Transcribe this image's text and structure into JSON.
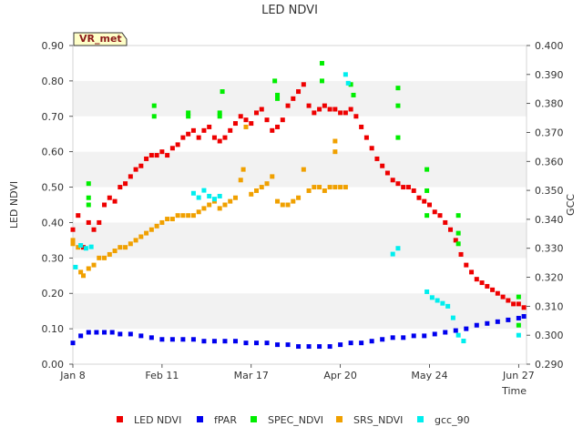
{
  "chart_data": {
    "type": "scatter",
    "title": "LED NDVI",
    "xlabel": "Time",
    "ylabel_left": "LED NDVI",
    "ylabel_right": "GCC",
    "badge": "VR_met",
    "x_ticks": [
      "Jan 8",
      "Feb 11",
      "Mar 17",
      "Apr 20",
      "May 24",
      "Jun 27"
    ],
    "x_range_days": [
      0,
      173
    ],
    "x_tick_days": [
      0,
      34,
      68,
      102,
      136,
      170
    ],
    "y_left_ticks": [
      "0.00",
      "0.10",
      "0.20",
      "0.30",
      "0.40",
      "0.50",
      "0.60",
      "0.70",
      "0.80",
      "0.90"
    ],
    "ylim_left": [
      0.0,
      0.9
    ],
    "y_right_ticks": [
      "0.290",
      "0.300",
      "0.310",
      "0.320",
      "0.330",
      "0.340",
      "0.350",
      "0.360",
      "0.370",
      "0.380",
      "0.390",
      "0.400"
    ],
    "ylim_right": [
      0.29,
      0.4
    ],
    "grid": "horizontal bands",
    "legend_position": "bottom",
    "series": [
      {
        "name": "LED NDVI",
        "color": "#ee0000",
        "axis": "left",
        "points": [
          [
            0,
            0.38
          ],
          [
            2,
            0.42
          ],
          [
            4,
            0.33
          ],
          [
            6,
            0.4
          ],
          [
            8,
            0.38
          ],
          [
            10,
            0.4
          ],
          [
            12,
            0.45
          ],
          [
            14,
            0.47
          ],
          [
            16,
            0.46
          ],
          [
            18,
            0.5
          ],
          [
            20,
            0.51
          ],
          [
            22,
            0.53
          ],
          [
            24,
            0.55
          ],
          [
            26,
            0.56
          ],
          [
            28,
            0.58
          ],
          [
            30,
            0.59
          ],
          [
            32,
            0.59
          ],
          [
            34,
            0.6
          ],
          [
            36,
            0.59
          ],
          [
            38,
            0.61
          ],
          [
            40,
            0.62
          ],
          [
            42,
            0.64
          ],
          [
            44,
            0.65
          ],
          [
            46,
            0.66
          ],
          [
            48,
            0.64
          ],
          [
            50,
            0.66
          ],
          [
            52,
            0.67
          ],
          [
            54,
            0.64
          ],
          [
            56,
            0.63
          ],
          [
            58,
            0.64
          ],
          [
            60,
            0.66
          ],
          [
            62,
            0.68
          ],
          [
            64,
            0.7
          ],
          [
            66,
            0.69
          ],
          [
            68,
            0.68
          ],
          [
            70,
            0.71
          ],
          [
            72,
            0.72
          ],
          [
            74,
            0.69
          ],
          [
            76,
            0.66
          ],
          [
            78,
            0.67
          ],
          [
            80,
            0.69
          ],
          [
            82,
            0.73
          ],
          [
            84,
            0.75
          ],
          [
            86,
            0.77
          ],
          [
            88,
            0.79
          ],
          [
            90,
            0.73
          ],
          [
            92,
            0.71
          ],
          [
            94,
            0.72
          ],
          [
            96,
            0.73
          ],
          [
            98,
            0.72
          ],
          [
            100,
            0.72
          ],
          [
            102,
            0.71
          ],
          [
            104,
            0.71
          ],
          [
            106,
            0.72
          ],
          [
            108,
            0.7
          ],
          [
            110,
            0.67
          ],
          [
            112,
            0.64
          ],
          [
            114,
            0.61
          ],
          [
            116,
            0.58
          ],
          [
            118,
            0.56
          ],
          [
            120,
            0.54
          ],
          [
            122,
            0.52
          ],
          [
            124,
            0.51
          ],
          [
            126,
            0.5
          ],
          [
            128,
            0.5
          ],
          [
            130,
            0.49
          ],
          [
            132,
            0.47
          ],
          [
            134,
            0.46
          ],
          [
            136,
            0.45
          ],
          [
            138,
            0.43
          ],
          [
            140,
            0.42
          ],
          [
            142,
            0.4
          ],
          [
            144,
            0.38
          ],
          [
            146,
            0.35
          ],
          [
            148,
            0.31
          ],
          [
            150,
            0.28
          ],
          [
            152,
            0.26
          ],
          [
            154,
            0.24
          ],
          [
            156,
            0.23
          ],
          [
            158,
            0.22
          ],
          [
            160,
            0.21
          ],
          [
            162,
            0.2
          ],
          [
            164,
            0.19
          ],
          [
            166,
            0.18
          ],
          [
            168,
            0.17
          ],
          [
            170,
            0.17
          ],
          [
            172,
            0.16
          ]
        ]
      },
      {
        "name": "fPAR",
        "color": "#0000ee",
        "axis": "left",
        "points": [
          [
            0,
            0.06
          ],
          [
            3,
            0.08
          ],
          [
            6,
            0.09
          ],
          [
            9,
            0.09
          ],
          [
            12,
            0.09
          ],
          [
            15,
            0.09
          ],
          [
            18,
            0.085
          ],
          [
            22,
            0.085
          ],
          [
            26,
            0.08
          ],
          [
            30,
            0.075
          ],
          [
            34,
            0.07
          ],
          [
            38,
            0.07
          ],
          [
            42,
            0.07
          ],
          [
            46,
            0.07
          ],
          [
            50,
            0.065
          ],
          [
            54,
            0.065
          ],
          [
            58,
            0.065
          ],
          [
            62,
            0.065
          ],
          [
            66,
            0.06
          ],
          [
            70,
            0.06
          ],
          [
            74,
            0.06
          ],
          [
            78,
            0.055
          ],
          [
            82,
            0.055
          ],
          [
            86,
            0.05
          ],
          [
            90,
            0.05
          ],
          [
            94,
            0.05
          ],
          [
            98,
            0.05
          ],
          [
            102,
            0.055
          ],
          [
            106,
            0.06
          ],
          [
            110,
            0.06
          ],
          [
            114,
            0.065
          ],
          [
            118,
            0.07
          ],
          [
            122,
            0.075
          ],
          [
            126,
            0.075
          ],
          [
            130,
            0.08
          ],
          [
            134,
            0.08
          ],
          [
            138,
            0.085
          ],
          [
            142,
            0.09
          ],
          [
            146,
            0.095
          ],
          [
            150,
            0.1
          ],
          [
            154,
            0.11
          ],
          [
            158,
            0.115
          ],
          [
            162,
            0.12
          ],
          [
            166,
            0.125
          ],
          [
            170,
            0.13
          ],
          [
            172,
            0.135
          ]
        ]
      },
      {
        "name": "SPEC_NDVI",
        "color": "#00ee00",
        "axis": "left",
        "points": [
          [
            6,
            0.51
          ],
          [
            6,
            0.47
          ],
          [
            6,
            0.45
          ],
          [
            31,
            0.73
          ],
          [
            31,
            0.7
          ],
          [
            44,
            0.71
          ],
          [
            44,
            0.7
          ],
          [
            56,
            0.71
          ],
          [
            56,
            0.7
          ],
          [
            57,
            0.77
          ],
          [
            77,
            0.8
          ],
          [
            78,
            0.76
          ],
          [
            78,
            0.75
          ],
          [
            95,
            0.85
          ],
          [
            95,
            0.8
          ],
          [
            106,
            0.79
          ],
          [
            107,
            0.76
          ],
          [
            124,
            0.78
          ],
          [
            124,
            0.73
          ],
          [
            124,
            0.64
          ],
          [
            135,
            0.55
          ],
          [
            135,
            0.49
          ],
          [
            135,
            0.42
          ],
          [
            147,
            0.42
          ],
          [
            147,
            0.37
          ],
          [
            147,
            0.34
          ],
          [
            170,
            0.19
          ],
          [
            170,
            0.11
          ]
        ]
      },
      {
        "name": "SRS_NDVI",
        "color": "#f0a000",
        "axis": "left",
        "points": [
          [
            0,
            0.35
          ],
          [
            0,
            0.34
          ],
          [
            2,
            0.33
          ],
          [
            3,
            0.26
          ],
          [
            4,
            0.25
          ],
          [
            6,
            0.27
          ],
          [
            8,
            0.28
          ],
          [
            10,
            0.3
          ],
          [
            12,
            0.3
          ],
          [
            14,
            0.31
          ],
          [
            16,
            0.32
          ],
          [
            18,
            0.33
          ],
          [
            20,
            0.33
          ],
          [
            22,
            0.34
          ],
          [
            24,
            0.35
          ],
          [
            26,
            0.36
          ],
          [
            28,
            0.37
          ],
          [
            30,
            0.38
          ],
          [
            32,
            0.39
          ],
          [
            34,
            0.4
          ],
          [
            36,
            0.41
          ],
          [
            38,
            0.41
          ],
          [
            40,
            0.42
          ],
          [
            42,
            0.42
          ],
          [
            44,
            0.42
          ],
          [
            46,
            0.42
          ],
          [
            48,
            0.43
          ],
          [
            50,
            0.44
          ],
          [
            52,
            0.45
          ],
          [
            54,
            0.46
          ],
          [
            56,
            0.44
          ],
          [
            58,
            0.45
          ],
          [
            60,
            0.46
          ],
          [
            62,
            0.47
          ],
          [
            64,
            0.52
          ],
          [
            65,
            0.55
          ],
          [
            66,
            0.67
          ],
          [
            68,
            0.48
          ],
          [
            70,
            0.49
          ],
          [
            72,
            0.5
          ],
          [
            74,
            0.51
          ],
          [
            76,
            0.53
          ],
          [
            78,
            0.46
          ],
          [
            80,
            0.45
          ],
          [
            82,
            0.45
          ],
          [
            84,
            0.46
          ],
          [
            86,
            0.47
          ],
          [
            88,
            0.55
          ],
          [
            90,
            0.49
          ],
          [
            92,
            0.5
          ],
          [
            94,
            0.5
          ],
          [
            96,
            0.49
          ],
          [
            98,
            0.5
          ],
          [
            100,
            0.5
          ],
          [
            102,
            0.5
          ],
          [
            104,
            0.5
          ],
          [
            100,
            0.6
          ],
          [
            100,
            0.63
          ]
        ]
      },
      {
        "name": "gcc_90",
        "color": "#00eeee",
        "axis": "right",
        "points": [
          [
            1,
            0.3235
          ],
          [
            3,
            0.331
          ],
          [
            5,
            0.33
          ],
          [
            7,
            0.3305
          ],
          [
            46,
            0.349
          ],
          [
            48,
            0.3475
          ],
          [
            50,
            0.35
          ],
          [
            52,
            0.348
          ],
          [
            54,
            0.347
          ],
          [
            56,
            0.348
          ],
          [
            104,
            0.39
          ],
          [
            105,
            0.387
          ],
          [
            122,
            0.328
          ],
          [
            124,
            0.33
          ],
          [
            135,
            0.315
          ],
          [
            137,
            0.313
          ],
          [
            139,
            0.312
          ],
          [
            141,
            0.311
          ],
          [
            143,
            0.31
          ],
          [
            145,
            0.306
          ],
          [
            147,
            0.3
          ],
          [
            149,
            0.298
          ],
          [
            170,
            0.3
          ]
        ]
      }
    ]
  }
}
